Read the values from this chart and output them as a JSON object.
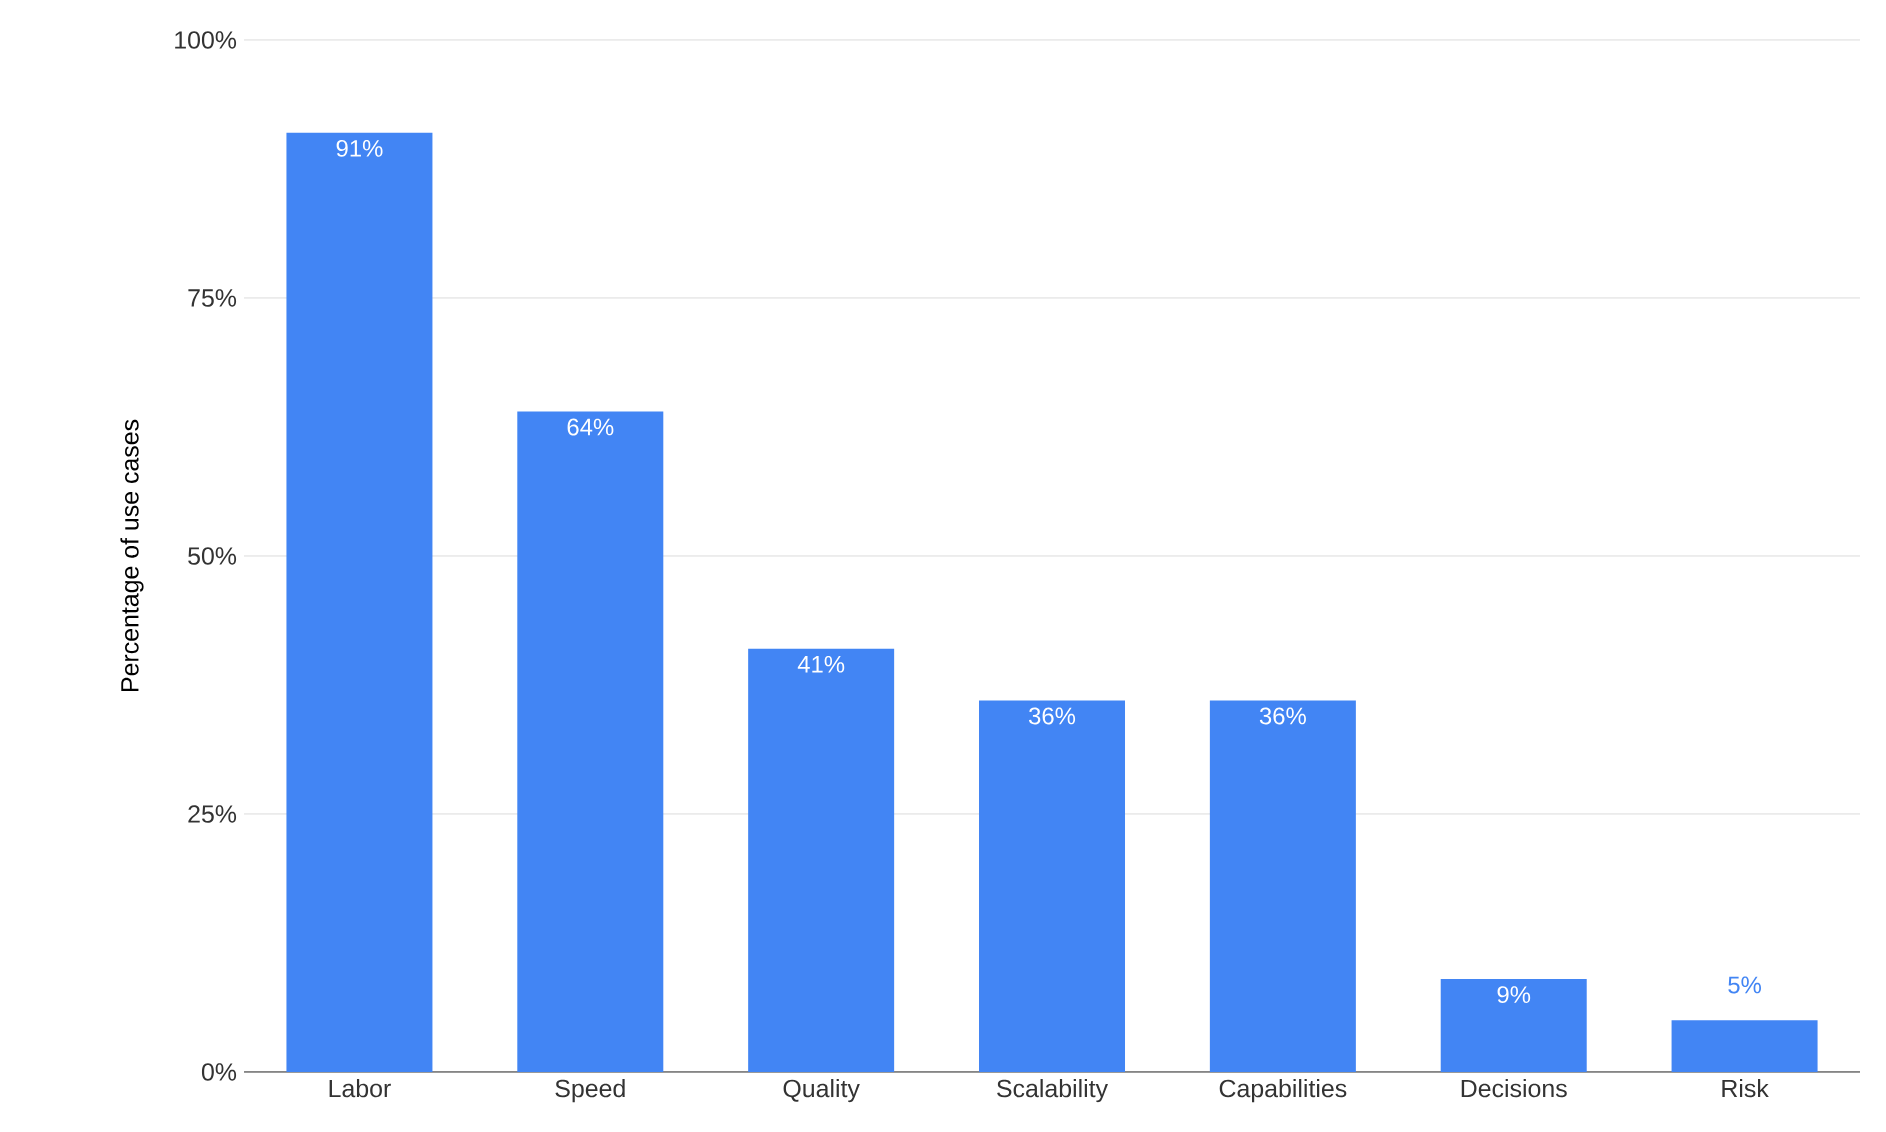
{
  "chart_data": {
    "type": "bar",
    "ylabel": "Percentage of use cases",
    "categories": [
      "Labor",
      "Speed",
      "Quality",
      "Scalability",
      "Capabilities",
      "Decisions",
      "Risk"
    ],
    "values": [
      91,
      64,
      41,
      36,
      36,
      9,
      5
    ],
    "value_labels": [
      "91%",
      "64%",
      "41%",
      "36%",
      "36%",
      "9%",
      "5%"
    ],
    "color": "#4285f4",
    "ylim": [
      0,
      100
    ],
    "yticks": [
      {
        "value": 0,
        "label": "0%"
      },
      {
        "value": 25,
        "label": "25%"
      },
      {
        "value": 50,
        "label": "50%"
      },
      {
        "value": 75,
        "label": "75%"
      },
      {
        "value": 100,
        "label": "100%"
      }
    ],
    "grid": "y"
  }
}
